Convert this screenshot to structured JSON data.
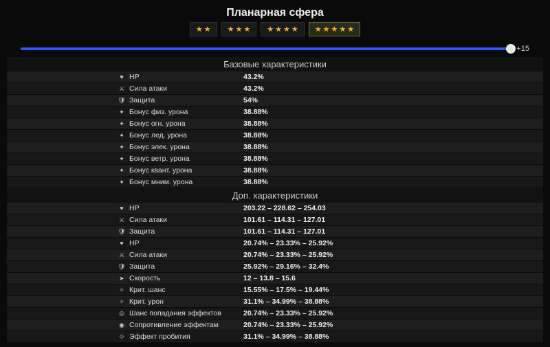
{
  "title": "Планарная сфера",
  "rarity": {
    "options": [
      2,
      3,
      4,
      5
    ],
    "selected_index": 3,
    "star_color": "#f0b030"
  },
  "slider": {
    "value": 15,
    "max": 15,
    "label": "+15",
    "fill_color": "#2a5ade",
    "track_color": "#1a3a6a"
  },
  "sections": [
    {
      "header": "Базовые характеристики",
      "rows": [
        {
          "icon": "♥",
          "name": "HP",
          "value": "43.2%"
        },
        {
          "icon": "⚔",
          "name": "Сила атаки",
          "value": "43.2%"
        },
        {
          "icon": "🛡",
          "name": "Защита",
          "value": "54%"
        },
        {
          "icon": "✦",
          "name": "Бонус физ. урона",
          "value": "38.88%"
        },
        {
          "icon": "✦",
          "name": "Бонус огн. урона",
          "value": "38.88%"
        },
        {
          "icon": "✦",
          "name": "Бонус лед. урона",
          "value": "38.88%"
        },
        {
          "icon": "✦",
          "name": "Бонус элек. урона",
          "value": "38.88%"
        },
        {
          "icon": "✦",
          "name": "Бонус ветр. урона",
          "value": "38.88%"
        },
        {
          "icon": "✦",
          "name": "Бонус квант. урона",
          "value": "38.88%"
        },
        {
          "icon": "✦",
          "name": "Бонус мним. урона",
          "value": "38.88%"
        }
      ]
    },
    {
      "header": "Доп. характеристики",
      "rows": [
        {
          "icon": "♥",
          "name": "HP",
          "value": "203.22 – 228.62 – 254.03"
        },
        {
          "icon": "⚔",
          "name": "Сила атаки",
          "value": "101.61 – 114.31 – 127.01"
        },
        {
          "icon": "🛡",
          "name": "Защита",
          "value": "101.61 – 114.31 – 127.01"
        },
        {
          "icon": "♥",
          "name": "HP",
          "value": "20.74% – 23.33% – 25.92%"
        },
        {
          "icon": "⚔",
          "name": "Сила атаки",
          "value": "20.74% – 23.33% – 25.92%"
        },
        {
          "icon": "🛡",
          "name": "Защита",
          "value": "25.92% – 29.16% – 32.4%"
        },
        {
          "icon": "➤",
          "name": "Скорость",
          "value": "12 – 13.8 – 15.6"
        },
        {
          "icon": "✧",
          "name": "Крит. шанс",
          "value": "15.55% – 17.5% – 19.44%"
        },
        {
          "icon": "✧",
          "name": "Крит. урон",
          "value": "31.1% – 34.99% – 38.88%"
        },
        {
          "icon": "◎",
          "name": "Шанс попадания эффектов",
          "value": "20.74% – 23.33% – 25.92%"
        },
        {
          "icon": "◉",
          "name": "Сопротивление эффектам",
          "value": "20.74% – 23.33% – 25.92%"
        },
        {
          "icon": "⟐",
          "name": "Эффект пробития",
          "value": "31.1% – 34.99% – 38.88%"
        }
      ]
    }
  ],
  "colors": {
    "background": "#0a0a0a",
    "row_bg": "#1e1e1e",
    "row_alt_bg": "#181818",
    "text": "#ddd",
    "value_text": "#eee"
  }
}
